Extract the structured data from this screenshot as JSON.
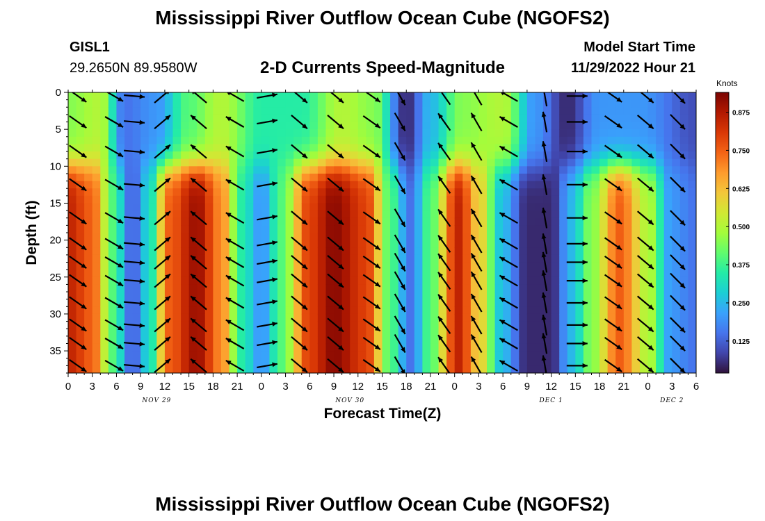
{
  "header": {
    "title": "Mississippi River Outflow Ocean Cube (NGOFS2)",
    "station": "GISL1",
    "coords": "29.2650N  89.9580W",
    "model_start_label": "Model Start Time",
    "model_start_value": "11/29/2022 Hour 21",
    "subtitle": "2-D Currents Speed-Magnitude",
    "footer_title": "Mississippi River Outflow Ocean Cube (NGOFS2)"
  },
  "colorbar": {
    "unit": "Knots",
    "ticks": [
      "0.125",
      "0.250",
      "0.375",
      "0.500",
      "0.625",
      "0.750",
      "0.875"
    ],
    "range": [
      0.02,
      0.94
    ],
    "colors": [
      "#30123b",
      "#4145ab",
      "#4675ed",
      "#39a2fc",
      "#1bcfd4",
      "#24eca6",
      "#61fc6c",
      "#a4fc3b",
      "#d1e834",
      "#f3c63a",
      "#fe9b2d",
      "#f36315",
      "#d93806",
      "#b11901",
      "#7a0402"
    ]
  },
  "chart_data": {
    "type": "heatmap",
    "title": "2-D Currents Speed-Magnitude",
    "xlabel": "Forecast Time(Z)",
    "ylabel": "Depth (ft)",
    "x_range_hours": [
      0,
      78
    ],
    "y_range_ft": [
      0,
      38
    ],
    "y_inverted": true,
    "x_tick_labels": [
      "0",
      "3",
      "6",
      "9",
      "12",
      "15",
      "18",
      "21",
      "0",
      "3",
      "6",
      "9",
      "12",
      "15",
      "18",
      "21",
      "0",
      "3",
      "6",
      "9",
      "12",
      "15",
      "18",
      "21",
      "0",
      "3",
      "6"
    ],
    "y_tick_labels": [
      "0",
      "5",
      "10",
      "15",
      "20",
      "25",
      "30",
      "35"
    ],
    "y_tick_values": [
      0,
      5,
      10,
      15,
      20,
      25,
      30,
      35
    ],
    "date_labels": [
      {
        "label": "NOV 29",
        "hour": 11
      },
      {
        "label": "NOV 30",
        "hour": 35
      },
      {
        "label": "DEC 1",
        "hour": 60
      },
      {
        "label": "DEC 2",
        "hour": 75
      }
    ],
    "depth_levels_ft": [
      0.5,
      4,
      8,
      12.5,
      17,
      20.5,
      23,
      25.5,
      28.5,
      31.5,
      34,
      37
    ],
    "bottom_speed_profile_knots": [
      {
        "hour": 0,
        "speed": 0.85
      },
      {
        "hour": 3,
        "speed": 0.75
      },
      {
        "hour": 5.5,
        "speed": 0.4
      },
      {
        "hour": 8,
        "speed": 0.12
      },
      {
        "hour": 10,
        "speed": 0.3
      },
      {
        "hour": 12.5,
        "speed": 0.75
      },
      {
        "hour": 16,
        "speed": 0.9
      },
      {
        "hour": 19,
        "speed": 0.7
      },
      {
        "hour": 21.5,
        "speed": 0.35
      },
      {
        "hour": 24,
        "speed": 0.2
      },
      {
        "hour": 26.5,
        "speed": 0.4
      },
      {
        "hour": 30,
        "speed": 0.8
      },
      {
        "hour": 33,
        "speed": 0.92
      },
      {
        "hour": 37,
        "speed": 0.8
      },
      {
        "hour": 40,
        "speed": 0.4
      },
      {
        "hour": 42.5,
        "speed": 0.15
      },
      {
        "hour": 45,
        "speed": 0.4
      },
      {
        "hour": 48.5,
        "speed": 0.85
      },
      {
        "hour": 51,
        "speed": 0.6
      },
      {
        "hour": 54,
        "speed": 0.25
      },
      {
        "hour": 57,
        "speed": 0.05
      },
      {
        "hour": 60,
        "speed": 0.05
      },
      {
        "hour": 62.5,
        "speed": 0.25
      },
      {
        "hour": 65,
        "speed": 0.45
      },
      {
        "hour": 68.5,
        "speed": 0.75
      },
      {
        "hour": 72,
        "speed": 0.5
      },
      {
        "hour": 75,
        "speed": 0.2
      },
      {
        "hour": 78,
        "speed": 0.15
      }
    ],
    "near_surface_speed_profile_knots": [
      {
        "hour": 0,
        "speed": 0.45
      },
      {
        "hour": 4,
        "speed": 0.5
      },
      {
        "hour": 7,
        "speed": 0.15
      },
      {
        "hour": 11,
        "speed": 0.2
      },
      {
        "hour": 15,
        "speed": 0.4
      },
      {
        "hour": 19,
        "speed": 0.5
      },
      {
        "hour": 24,
        "speed": 0.35
      },
      {
        "hour": 29,
        "speed": 0.35
      },
      {
        "hour": 34,
        "speed": 0.5
      },
      {
        "hour": 38,
        "speed": 0.45
      },
      {
        "hour": 42,
        "speed": 0.05
      },
      {
        "hour": 45,
        "speed": 0.25
      },
      {
        "hour": 49,
        "speed": 0.45
      },
      {
        "hour": 54,
        "speed": 0.5
      },
      {
        "hour": 58,
        "speed": 0.2
      },
      {
        "hour": 62,
        "speed": 0.05
      },
      {
        "hour": 66,
        "speed": 0.2
      },
      {
        "hour": 71,
        "speed": 0.2
      },
      {
        "hour": 78,
        "speed": 0.1
      }
    ],
    "vector_columns": [
      {
        "hour": 0,
        "angle_deg": 35
      },
      {
        "hour": 4.5,
        "angle_deg": 30
      },
      {
        "hour": 7,
        "angle_deg": 5
      },
      {
        "hour": 10.5,
        "angle_deg": -40
      },
      {
        "hour": 15,
        "angle_deg": -140
      },
      {
        "hour": 19.5,
        "angle_deg": -150
      },
      {
        "hour": 23.5,
        "angle_deg": -10
      },
      {
        "hour": 27.5,
        "angle_deg": 40
      },
      {
        "hour": 32,
        "angle_deg": 40
      },
      {
        "hour": 36.5,
        "angle_deg": 35
      },
      {
        "hour": 40,
        "angle_deg": 60
      },
      {
        "hour": 45.5,
        "angle_deg": -125
      },
      {
        "hour": 49.5,
        "angle_deg": -120
      },
      {
        "hour": 53.5,
        "angle_deg": -150
      },
      {
        "hour": 58,
        "angle_deg": -100
      },
      {
        "hour": 62,
        "angle_deg": 0
      },
      {
        "hour": 66.5,
        "angle_deg": 35
      },
      {
        "hour": 70.5,
        "angle_deg": 40
      },
      {
        "hour": 74.5,
        "angle_deg": 45
      }
    ]
  }
}
